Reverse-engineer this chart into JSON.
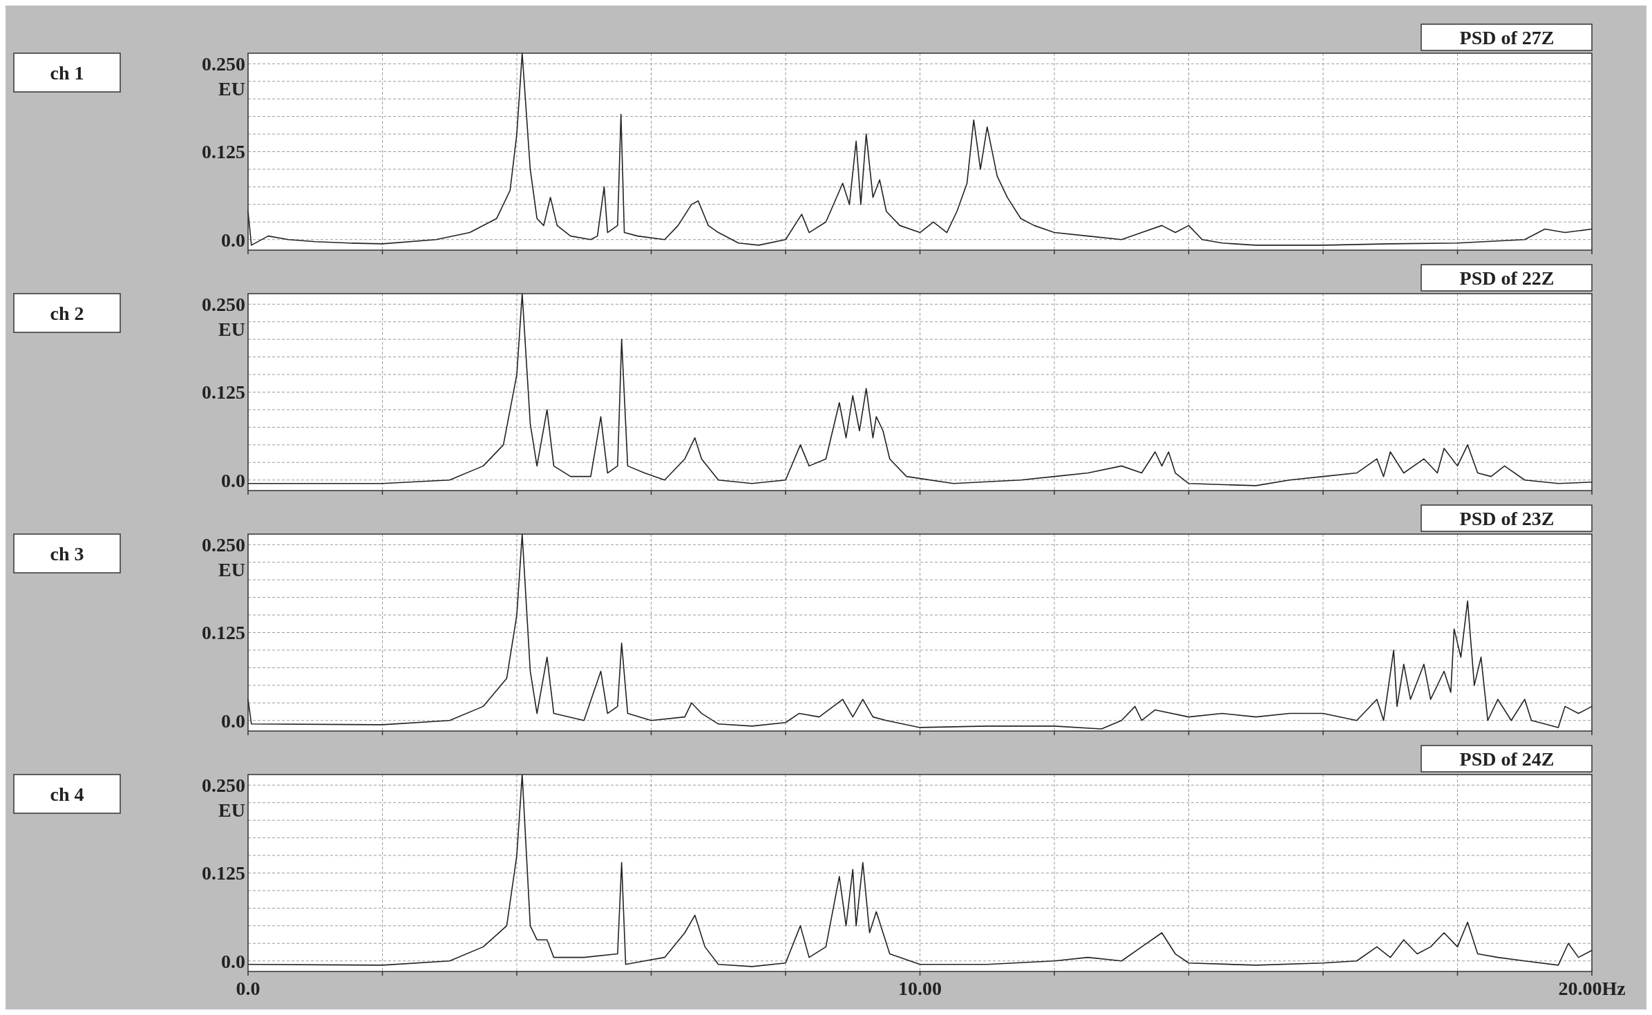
{
  "chart_data": [
    {
      "type": "line",
      "annotations": [
        "ch 1"
      ],
      "title": "PSD of 27Z",
      "ylabel": "EU",
      "tick_labels": "y",
      "grid": true,
      "x": [
        0,
        0.05,
        0.3,
        0.6,
        1,
        1.5,
        2,
        2.8,
        3.3,
        3.7,
        3.9,
        4.0,
        4.08,
        4.2,
        4.3,
        4.4,
        4.5,
        4.6,
        4.8,
        5.1,
        5.2,
        5.3,
        5.35,
        5.5,
        5.55,
        5.6,
        5.8,
        6.2,
        6.4,
        6.6,
        6.7,
        6.85,
        7.0,
        7.3,
        7.6,
        8.0,
        8.24,
        8.35,
        8.6,
        8.85,
        8.95,
        9.05,
        9.12,
        9.2,
        9.3,
        9.4,
        9.5,
        9.7,
        10.0,
        10.2,
        10.4,
        10.55,
        10.7,
        10.8,
        10.9,
        11.0,
        11.15,
        11.3,
        11.5,
        11.7,
        12.0,
        12.5,
        13.0,
        13.3,
        13.6,
        13.8,
        14.0,
        14.2,
        14.5,
        15,
        16,
        17,
        18,
        19,
        19.3,
        19.6,
        20
      ],
      "series": [
        {
          "color": "#222222",
          "values": [
            0.04,
            -0.008,
            0.005,
            0.0,
            -0.003,
            -0.005,
            -0.006,
            0.0,
            0.01,
            0.03,
            0.07,
            0.15,
            0.265,
            0.1,
            0.03,
            0.02,
            0.06,
            0.02,
            0.005,
            0.0,
            0.005,
            0.075,
            0.01,
            0.02,
            0.178,
            0.01,
            0.005,
            0.0,
            0.02,
            0.05,
            0.055,
            0.02,
            0.01,
            -0.005,
            -0.008,
            0.0,
            0.036,
            0.01,
            0.025,
            0.08,
            0.05,
            0.14,
            0.05,
            0.15,
            0.06,
            0.085,
            0.04,
            0.02,
            0.01,
            0.025,
            0.01,
            0.04,
            0.08,
            0.17,
            0.1,
            0.16,
            0.09,
            0.06,
            0.03,
            0.02,
            0.01,
            0.005,
            0.0,
            0.01,
            0.02,
            0.01,
            0.02,
            0.0,
            -0.005,
            -0.008,
            -0.008,
            -0.006,
            -0.005,
            0.0,
            0.015,
            0.01,
            0.015
          ]
        }
      ],
      "xlim": [
        0,
        20
      ],
      "ylim": [
        -0.015,
        0.265
      ],
      "xticks": [
        {
          "value": 0,
          "label": null
        },
        {
          "value": 2,
          "label": null
        },
        {
          "value": 4,
          "label": null
        },
        {
          "value": 6,
          "label": null
        },
        {
          "value": 8,
          "label": null
        },
        {
          "value": 10,
          "label": null
        },
        {
          "value": 12,
          "label": null
        },
        {
          "value": 14,
          "label": null
        },
        {
          "value": 16,
          "label": null
        },
        {
          "value": 18,
          "label": null
        },
        {
          "value": 20,
          "label": null
        }
      ],
      "yticks": [
        {
          "value": 0,
          "label": "0.0"
        },
        {
          "value": 0.025,
          "label": null
        },
        {
          "value": 0.05,
          "label": null
        },
        {
          "value": 0.075,
          "label": null
        },
        {
          "value": 0.1,
          "label": null
        },
        {
          "value": 0.125,
          "label": "0.125"
        },
        {
          "value": 0.15,
          "label": null
        },
        {
          "value": 0.175,
          "label": null
        },
        {
          "value": 0.2,
          "label": null
        },
        {
          "value": 0.225,
          "label": null
        },
        {
          "value": 0.25,
          "label": "0.250"
        }
      ]
    },
    {
      "type": "line",
      "annotations": [
        "ch 2"
      ],
      "title": "PSD of 22Z",
      "ylabel": "EU",
      "tick_labels": "y",
      "grid": true,
      "x": [
        0,
        2,
        3,
        3.5,
        3.8,
        4.0,
        4.08,
        4.2,
        4.3,
        4.45,
        4.55,
        4.8,
        5.1,
        5.25,
        5.35,
        5.5,
        5.56,
        5.65,
        5.9,
        6.2,
        6.5,
        6.65,
        6.75,
        7.0,
        7.5,
        8.0,
        8.22,
        8.35,
        8.6,
        8.8,
        8.9,
        9.0,
        9.1,
        9.2,
        9.3,
        9.35,
        9.45,
        9.55,
        9.8,
        10.5,
        11.5,
        12.0,
        12.5,
        13.0,
        13.3,
        13.5,
        13.6,
        13.7,
        13.8,
        14.0,
        15,
        15.5,
        16.0,
        16.5,
        16.8,
        16.9,
        17.0,
        17.2,
        17.5,
        17.7,
        17.8,
        18.0,
        18.15,
        18.3,
        18.5,
        18.7,
        19.0,
        19.5,
        20
      ],
      "series": [
        {
          "color": "#222222",
          "values": [
            -0.005,
            -0.005,
            0.0,
            0.02,
            0.05,
            0.15,
            0.265,
            0.08,
            0.02,
            0.1,
            0.02,
            0.005,
            0.005,
            0.09,
            0.01,
            0.02,
            0.2,
            0.02,
            0.01,
            0.0,
            0.03,
            0.06,
            0.03,
            0.0,
            -0.005,
            0.0,
            0.05,
            0.02,
            0.03,
            0.11,
            0.06,
            0.12,
            0.07,
            0.13,
            0.06,
            0.09,
            0.07,
            0.03,
            0.005,
            -0.005,
            0.0,
            0.005,
            0.01,
            0.02,
            0.01,
            0.04,
            0.02,
            0.04,
            0.01,
            -0.005,
            -0.008,
            0.0,
            0.005,
            0.01,
            0.03,
            0.005,
            0.04,
            0.01,
            0.03,
            0.01,
            0.045,
            0.02,
            0.05,
            0.01,
            0.005,
            0.02,
            0.0,
            -0.005,
            -0.003
          ]
        }
      ],
      "xlim": [
        0,
        20
      ],
      "ylim": [
        -0.015,
        0.265
      ],
      "xticks": [
        {
          "value": 0,
          "label": null
        },
        {
          "value": 2,
          "label": null
        },
        {
          "value": 4,
          "label": null
        },
        {
          "value": 6,
          "label": null
        },
        {
          "value": 8,
          "label": null
        },
        {
          "value": 10,
          "label": null
        },
        {
          "value": 12,
          "label": null
        },
        {
          "value": 14,
          "label": null
        },
        {
          "value": 16,
          "label": null
        },
        {
          "value": 18,
          "label": null
        },
        {
          "value": 20,
          "label": null
        }
      ],
      "yticks": [
        {
          "value": 0,
          "label": "0.0"
        },
        {
          "value": 0.025,
          "label": null
        },
        {
          "value": 0.05,
          "label": null
        },
        {
          "value": 0.075,
          "label": null
        },
        {
          "value": 0.1,
          "label": null
        },
        {
          "value": 0.125,
          "label": "0.125"
        },
        {
          "value": 0.15,
          "label": null
        },
        {
          "value": 0.175,
          "label": null
        },
        {
          "value": 0.2,
          "label": null
        },
        {
          "value": 0.225,
          "label": null
        },
        {
          "value": 0.25,
          "label": "0.250"
        }
      ]
    },
    {
      "type": "line",
      "annotations": [
        "ch 3"
      ],
      "title": "PSD of 23Z",
      "ylabel": "EU",
      "tick_labels": "y",
      "grid": true,
      "x": [
        0,
        0.05,
        2,
        3,
        3.5,
        3.85,
        4.0,
        4.08,
        4.2,
        4.3,
        4.45,
        4.55,
        5.0,
        5.25,
        5.35,
        5.5,
        5.56,
        5.65,
        6.0,
        6.5,
        6.6,
        6.75,
        7.0,
        7.5,
        8.0,
        8.2,
        8.5,
        8.85,
        9.0,
        9.15,
        9.3,
        9.5,
        10,
        11,
        12,
        12.7,
        13.0,
        13.2,
        13.3,
        13.5,
        14,
        14.5,
        15,
        15.5,
        16,
        16.5,
        16.8,
        16.9,
        17.05,
        17.1,
        17.2,
        17.3,
        17.5,
        17.6,
        17.8,
        17.9,
        17.95,
        18.05,
        18.15,
        18.25,
        18.35,
        18.45,
        18.6,
        18.8,
        19.0,
        19.1,
        19.3,
        19.5,
        19.6,
        19.8,
        20
      ],
      "series": [
        {
          "color": "#222222",
          "values": [
            0.03,
            -0.005,
            -0.006,
            0.0,
            0.02,
            0.06,
            0.15,
            0.265,
            0.07,
            0.01,
            0.09,
            0.01,
            0.0,
            0.07,
            0.01,
            0.02,
            0.11,
            0.01,
            0.0,
            0.005,
            0.025,
            0.01,
            -0.005,
            -0.008,
            -0.003,
            0.01,
            0.005,
            0.03,
            0.005,
            0.03,
            0.005,
            0.0,
            -0.01,
            -0.008,
            -0.008,
            -0.012,
            0.0,
            0.02,
            0.0,
            0.015,
            0.005,
            0.01,
            0.005,
            0.01,
            0.01,
            0.0,
            0.03,
            0.0,
            0.1,
            0.02,
            0.08,
            0.03,
            0.08,
            0.03,
            0.07,
            0.04,
            0.13,
            0.09,
            0.17,
            0.05,
            0.09,
            0.0,
            0.03,
            0.0,
            0.03,
            0.0,
            -0.005,
            -0.01,
            0.02,
            0.01,
            0.02
          ]
        }
      ],
      "xlim": [
        0,
        20
      ],
      "ylim": [
        -0.015,
        0.265
      ],
      "xticks": [
        {
          "value": 0,
          "label": null
        },
        {
          "value": 2,
          "label": null
        },
        {
          "value": 4,
          "label": null
        },
        {
          "value": 6,
          "label": null
        },
        {
          "value": 8,
          "label": null
        },
        {
          "value": 10,
          "label": null
        },
        {
          "value": 12,
          "label": null
        },
        {
          "value": 14,
          "label": null
        },
        {
          "value": 16,
          "label": null
        },
        {
          "value": 18,
          "label": null
        },
        {
          "value": 20,
          "label": null
        }
      ],
      "yticks": [
        {
          "value": 0,
          "label": "0.0"
        },
        {
          "value": 0.025,
          "label": null
        },
        {
          "value": 0.05,
          "label": null
        },
        {
          "value": 0.075,
          "label": null
        },
        {
          "value": 0.1,
          "label": null
        },
        {
          "value": 0.125,
          "label": "0.125"
        },
        {
          "value": 0.15,
          "label": null
        },
        {
          "value": 0.175,
          "label": null
        },
        {
          "value": 0.2,
          "label": null
        },
        {
          "value": 0.225,
          "label": null
        },
        {
          "value": 0.25,
          "label": "0.250"
        }
      ]
    },
    {
      "type": "line",
      "annotations": [
        "ch 4"
      ],
      "title": "PSD of 24Z",
      "ylabel": "EU",
      "grid": true,
      "x": [
        0,
        2,
        3,
        3.5,
        3.85,
        4.0,
        4.08,
        4.2,
        4.3,
        4.45,
        4.55,
        5.0,
        5.5,
        5.56,
        5.62,
        5.9,
        6.2,
        6.5,
        6.65,
        6.8,
        7.0,
        7.5,
        8.0,
        8.22,
        8.35,
        8.6,
        8.8,
        8.9,
        9.0,
        9.05,
        9.15,
        9.25,
        9.35,
        9.45,
        9.55,
        10,
        11,
        12,
        12.5,
        13,
        13.3,
        13.6,
        13.8,
        14,
        15,
        16,
        16.5,
        16.8,
        17.0,
        17.2,
        17.4,
        17.6,
        17.8,
        18.0,
        18.15,
        18.3,
        18.6,
        19.0,
        19.5,
        19.65,
        19.8,
        20
      ],
      "series": [
        {
          "color": "#222222",
          "values": [
            -0.005,
            -0.006,
            0.0,
            0.02,
            0.05,
            0.15,
            0.265,
            0.05,
            0.03,
            0.03,
            0.005,
            0.005,
            0.01,
            0.14,
            -0.005,
            0.0,
            0.005,
            0.04,
            0.065,
            0.02,
            -0.005,
            -0.008,
            -0.003,
            0.05,
            0.005,
            0.02,
            0.12,
            0.05,
            0.13,
            0.05,
            0.14,
            0.04,
            0.07,
            0.04,
            0.01,
            -0.005,
            -0.005,
            0.0,
            0.005,
            0.0,
            0.02,
            0.04,
            0.01,
            -0.003,
            -0.006,
            -0.003,
            0.0,
            0.02,
            0.005,
            0.03,
            0.01,
            0.02,
            0.04,
            0.02,
            0.055,
            0.01,
            0.005,
            0.0,
            -0.006,
            0.025,
            0.005,
            0.015
          ]
        }
      ],
      "xlim": [
        0,
        20
      ],
      "ylim": [
        -0.015,
        0.265
      ],
      "xticks": [
        {
          "value": 0,
          "label": "0.0"
        },
        {
          "value": 2,
          "label": null
        },
        {
          "value": 4,
          "label": null
        },
        {
          "value": 6,
          "label": null
        },
        {
          "value": 8,
          "label": null
        },
        {
          "value": 10,
          "label": "10.00"
        },
        {
          "value": 12,
          "label": null
        },
        {
          "value": 14,
          "label": null
        },
        {
          "value": 16,
          "label": null
        },
        {
          "value": 18,
          "label": null
        },
        {
          "value": 20,
          "label": "20.00Hz"
        }
      ],
      "yticks": [
        {
          "value": 0,
          "label": "0.0"
        },
        {
          "value": 0.025,
          "label": null
        },
        {
          "value": 0.05,
          "label": null
        },
        {
          "value": 0.075,
          "label": null
        },
        {
          "value": 0.1,
          "label": null
        },
        {
          "value": 0.125,
          "label": "0.125"
        },
        {
          "value": 0.15,
          "label": null
        },
        {
          "value": 0.175,
          "label": null
        },
        {
          "value": 0.2,
          "label": null
        },
        {
          "value": 0.225,
          "label": null
        },
        {
          "value": 0.25,
          "label": "0.250"
        }
      ]
    }
  ]
}
